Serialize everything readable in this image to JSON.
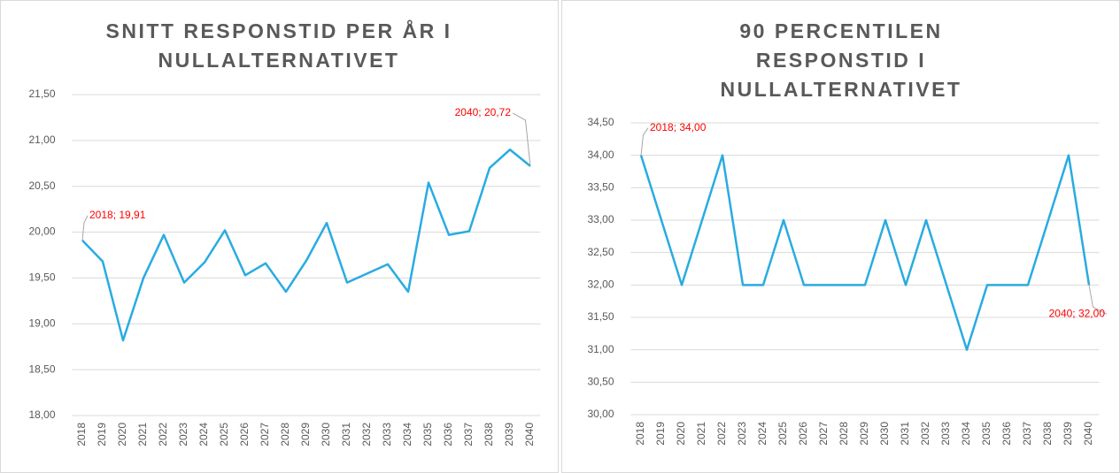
{
  "chart_data": [
    {
      "type": "line",
      "title": [
        "SNITT RESPONSTID PER ÅR I",
        "NULLALTERNATIVET"
      ],
      "categories": [
        "2018",
        "2019",
        "2020",
        "2021",
        "2022",
        "2023",
        "2024",
        "2025",
        "2026",
        "2027",
        "2028",
        "2029",
        "2030",
        "2031",
        "2032",
        "2033",
        "2034",
        "2035",
        "2036",
        "2037",
        "2038",
        "2039",
        "2040"
      ],
      "series": [
        {
          "color": "#29abe2",
          "values": [
            19.91,
            19.68,
            18.82,
            19.5,
            19.97,
            19.45,
            19.67,
            20.02,
            19.53,
            19.66,
            19.35,
            19.69,
            20.1,
            19.45,
            19.55,
            19.65,
            19.35,
            20.54,
            19.97,
            20.01,
            20.7,
            20.9,
            20.72
          ],
          "value_labels": [
            "2018;  19,91",
            null,
            null,
            null,
            null,
            null,
            null,
            null,
            null,
            null,
            null,
            null,
            null,
            null,
            null,
            null,
            null,
            null,
            null,
            null,
            null,
            null,
            "2040;  20,72"
          ]
        }
      ],
      "ylim": [
        18,
        21.5
      ],
      "yticks": [
        {
          "value": 18,
          "label": "18,00"
        },
        {
          "value": 18.5,
          "label": "18,50"
        },
        {
          "value": 19,
          "label": "19,00"
        },
        {
          "value": 19.5,
          "label": "19,50"
        },
        {
          "value": 20,
          "label": "20,00"
        },
        {
          "value": 20.5,
          "label": "20,50"
        },
        {
          "value": 21,
          "label": "21,00"
        },
        {
          "value": 21.5,
          "label": "21,50"
        }
      ],
      "grid": true
    },
    {
      "type": "line",
      "title": [
        "90 PERCENTILEN",
        "RESPONSTID I",
        "NULLALTERNATIVET"
      ],
      "categories": [
        "2018",
        "2019",
        "2020",
        "2021",
        "2022",
        "2023",
        "2024",
        "2025",
        "2026",
        "2027",
        "2028",
        "2029",
        "2030",
        "2031",
        "2032",
        "2033",
        "2034",
        "2035",
        "2036",
        "2037",
        "2038",
        "2039",
        "2040"
      ],
      "series": [
        {
          "color": "#29abe2",
          "values": [
            34,
            33,
            32,
            33,
            34,
            32,
            32,
            33,
            32,
            32,
            32,
            32,
            33,
            32,
            33,
            32,
            31,
            32,
            32,
            32,
            33,
            34,
            32
          ],
          "value_labels": [
            "2018;  34,00",
            null,
            null,
            null,
            null,
            null,
            null,
            null,
            null,
            null,
            null,
            null,
            null,
            null,
            null,
            null,
            null,
            null,
            null,
            null,
            null,
            null,
            "2040;  32,00"
          ]
        }
      ],
      "ylim": [
        30,
        34.5
      ],
      "yticks": [
        {
          "value": 30,
          "label": "30,00"
        },
        {
          "value": 30.5,
          "label": "30,50"
        },
        {
          "value": 31,
          "label": "31,00"
        },
        {
          "value": 31.5,
          "label": "31,50"
        },
        {
          "value": 32,
          "label": "32,00"
        },
        {
          "value": 32.5,
          "label": "32,50"
        },
        {
          "value": 33,
          "label": "33,00"
        },
        {
          "value": 33.5,
          "label": "33,50"
        },
        {
          "value": 34,
          "label": "34,00"
        },
        {
          "value": 34.5,
          "label": "34,50"
        }
      ],
      "grid": true
    }
  ]
}
